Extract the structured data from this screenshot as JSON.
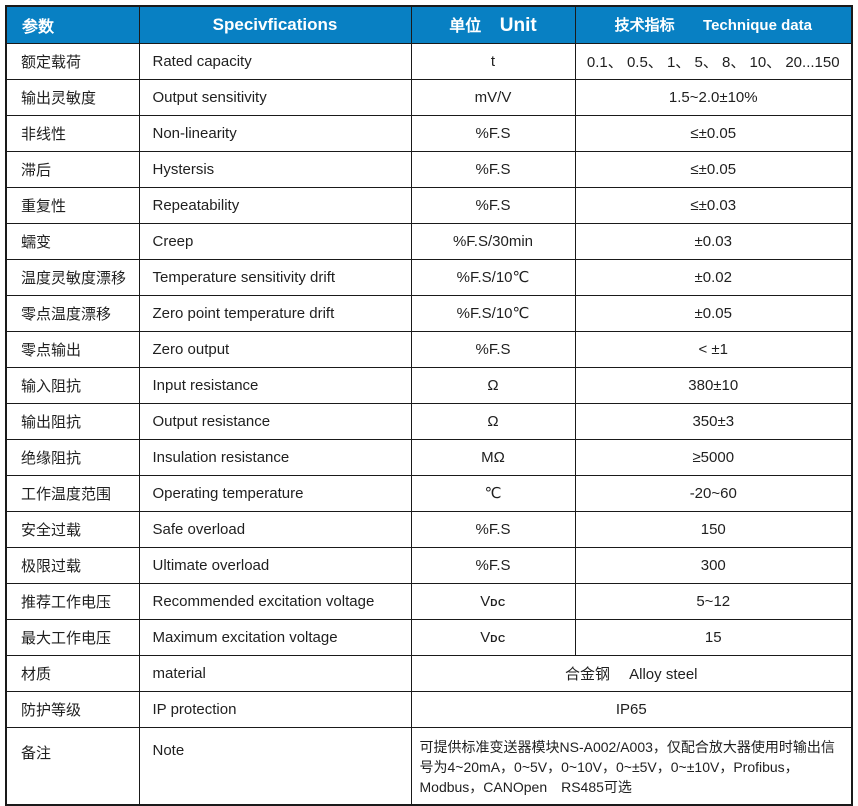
{
  "table": {
    "header": {
      "param_cn": "参数",
      "spec_en": "Specivfications",
      "unit_cn": "单位",
      "unit_en": "Unit",
      "data_cn": "技术指标",
      "data_en": "Technique data"
    },
    "rows": [
      {
        "param": "额定载荷",
        "spec": "Rated capacity",
        "unit": "t",
        "value": "0.1、 0.5、 1、 5、 8、 10、 20...150"
      },
      {
        "param": "输出灵敏度",
        "spec": "Output sensitivity",
        "unit": "mV/V",
        "value": "1.5~2.0±10%"
      },
      {
        "param": "非线性",
        "spec": "Non-linearity",
        "unit": "%F.S",
        "value": "≤±0.05"
      },
      {
        "param": "滞后",
        "spec": "Hystersis",
        "unit": "%F.S",
        "value": "≤±0.05"
      },
      {
        "param": "重复性",
        "spec": "Repeatability",
        "unit": "%F.S",
        "value": "≤±0.03"
      },
      {
        "param": "蠕变",
        "spec": "Creep",
        "unit": "%F.S/30min",
        "value": "±0.03"
      },
      {
        "param": "温度灵敏度漂移",
        "spec": "Temperature sensitivity drift",
        "unit": "%F.S/10℃",
        "value": "±0.02"
      },
      {
        "param": "零点温度漂移",
        "spec": "Zero point temperature drift",
        "unit": "%F.S/10℃",
        "value": "±0.05"
      },
      {
        "param": "零点输出",
        "spec": "Zero output",
        "unit": "%F.S",
        "value": "< ±1"
      },
      {
        "param": "输入阻抗",
        "spec": "Input resistance",
        "unit": "Ω",
        "value": "380±10"
      },
      {
        "param": "输出阻抗",
        "spec": "Output resistance",
        "unit": "Ω",
        "value": "350±3"
      },
      {
        "param": "绝缘阻抗",
        "spec": "Insulation resistance",
        "unit": "MΩ",
        "value": "≥5000"
      },
      {
        "param": "工作温度范围",
        "spec": "Operating temperature",
        "unit": "℃",
        "value": "-20~60"
      },
      {
        "param": "安全过载",
        "spec": "Safe overload",
        "unit": "%F.S",
        "value": "150"
      },
      {
        "param": "极限过载",
        "spec": "Ultimate overload",
        "unit": "%F.S",
        "value": "300"
      },
      {
        "param": "推荐工作电压",
        "spec": "Recommended excitation voltage",
        "unit": "V",
        "unit_sub": "DC",
        "value": "5~12"
      },
      {
        "param": "最大工作电压",
        "spec": "Maximum excitation voltage",
        "unit": "V",
        "unit_sub": "DC",
        "value": "15"
      },
      {
        "param": "材质",
        "spec": "material",
        "merged": true,
        "value": "合金钢　 Alloy steel"
      },
      {
        "param": "防护等级",
        "spec": "IP protection",
        "merged": true,
        "value": "IP65"
      },
      {
        "param": "备注",
        "spec": "Note",
        "merged": true,
        "tall": true,
        "align": "left",
        "value": "可提供标准变送器模块NS-A002/A003，仅配合放大器使用时输出信号为4~20mA，0~5V，0~10V，0~±5V，0~±10V，Profibus，Modbus，CANOpen　RS485可选"
      }
    ]
  },
  "colors": {
    "header_bg": "#0880C3",
    "header_text": "#FFFFFF",
    "border": "#1A1A1A",
    "text": "#1F1F1F"
  }
}
